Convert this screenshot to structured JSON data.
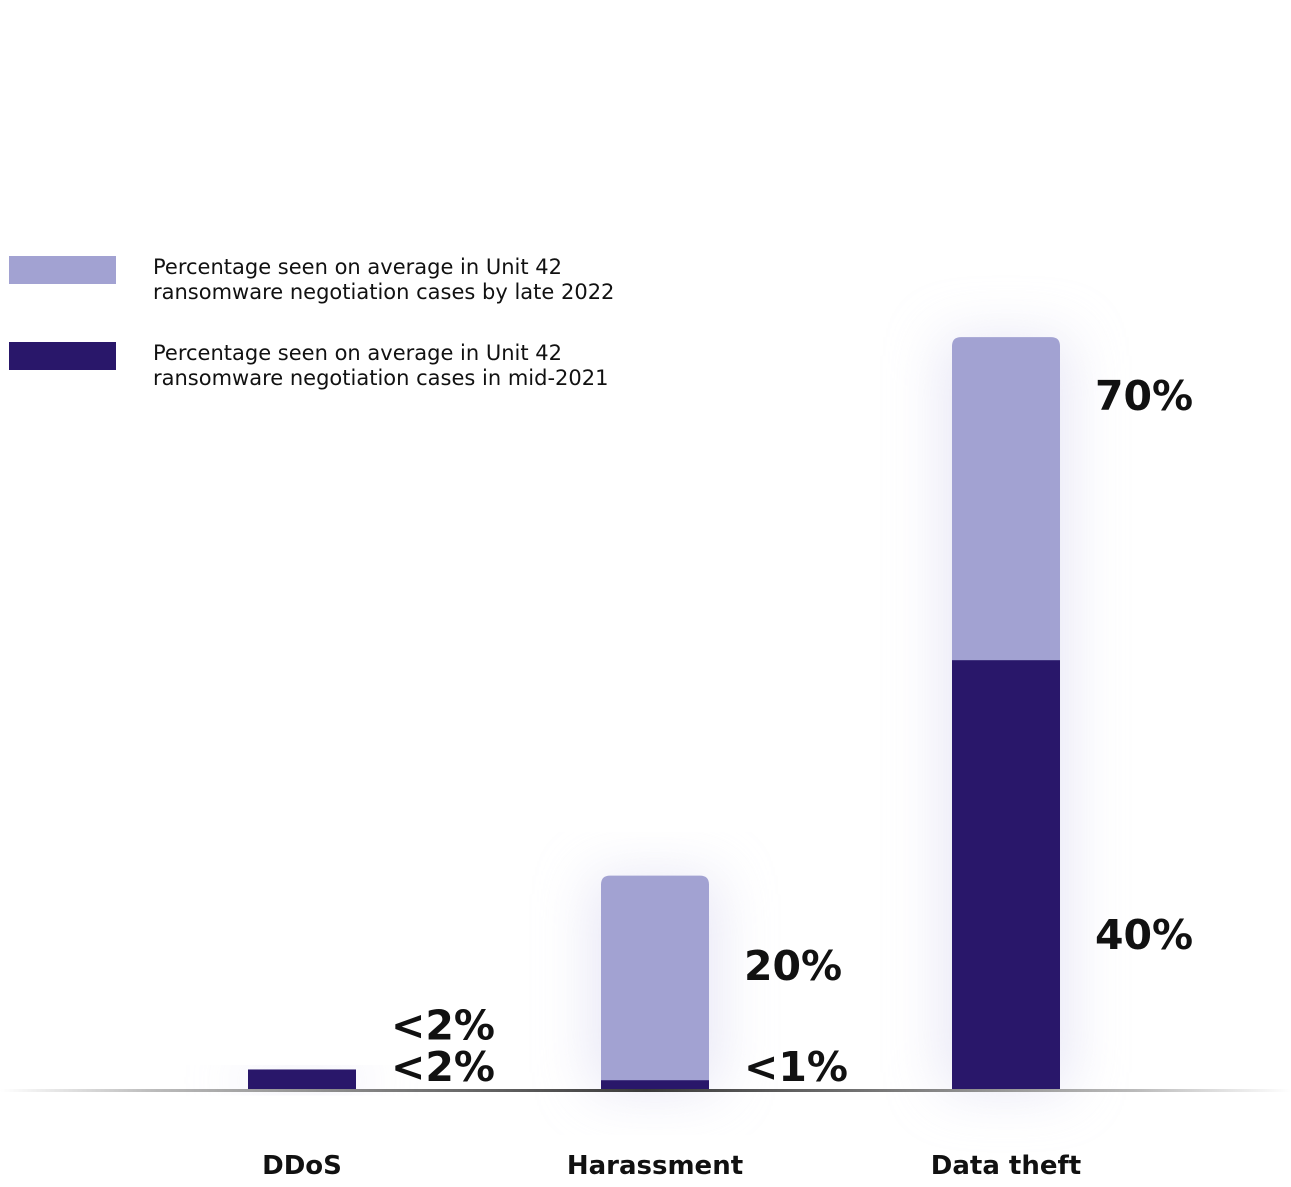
{
  "chart_data": {
    "type": "bar",
    "categories": [
      "DDoS",
      "Harassment",
      "Data theft"
    ],
    "series": [
      {
        "name": "Percentage seen on average in Unit 42 ransomware negotiation cases by late 2022",
        "values": [
          2,
          20,
          70
        ],
        "labels": [
          "<2%",
          "20%",
          "70%"
        ],
        "color": "#a2a2d2"
      },
      {
        "name": "Percentage seen on average in Unit 42 ransomware negotiation cases in mid-2021",
        "values": [
          2,
          1,
          40
        ],
        "labels": [
          "<2%",
          "<1%",
          "40%"
        ],
        "color": "#29176a"
      }
    ],
    "ylim": [
      0,
      100
    ],
    "grid": false,
    "legend_position": "left"
  },
  "colors": {
    "late_2022": "#a2a2d2",
    "mid_2021": "#29176a",
    "text": "#111111",
    "baseline": "#3a3a3a"
  }
}
